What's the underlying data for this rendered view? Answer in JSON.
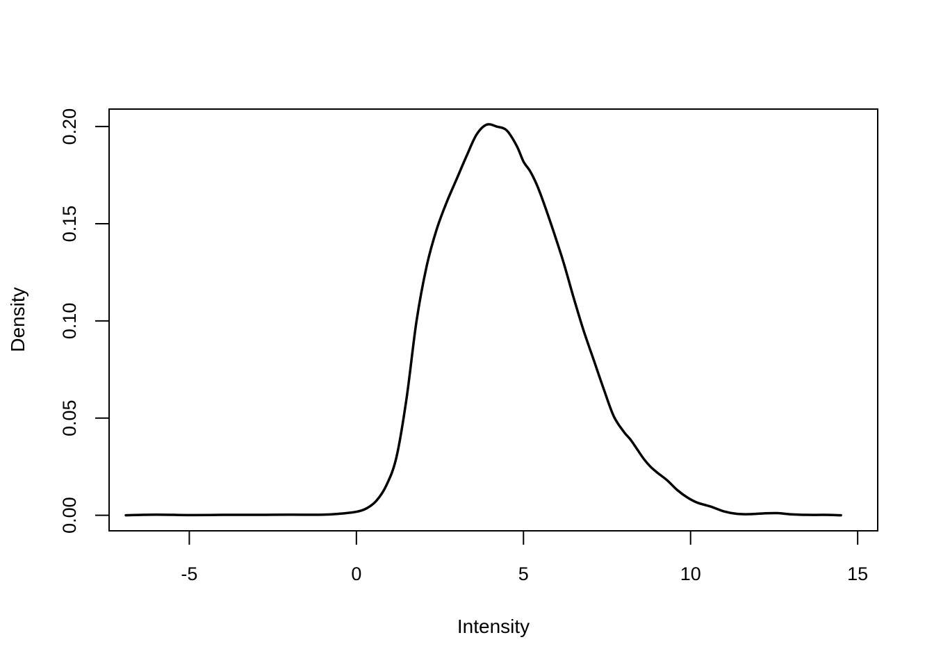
{
  "chart_data": {
    "type": "line",
    "title": "",
    "xlabel": "Intensity",
    "ylabel": "Density",
    "xlim": [
      -7.4,
      15.6
    ],
    "ylim": [
      -0.008,
      0.209
    ],
    "xticks": [
      -5,
      0,
      5,
      10,
      15
    ],
    "xtick_labels": [
      "-5",
      "0",
      "5",
      "10",
      "15"
    ],
    "yticks": [
      0.0,
      0.05,
      0.1,
      0.15,
      0.2
    ],
    "ytick_labels": [
      "0.00",
      "0.05",
      "0.10",
      "0.15",
      "0.20"
    ],
    "grid": false,
    "legend": "none",
    "colors": {
      "line": "#000000"
    },
    "series": [
      {
        "x": [
          -6.9,
          -6.0,
          -5.0,
          -4.0,
          -3.0,
          -2.0,
          -1.0,
          -0.5,
          0.0,
          0.3,
          0.6,
          0.9,
          1.2,
          1.5,
          1.8,
          2.1,
          2.4,
          2.7,
          3.0,
          3.3,
          3.6,
          3.9,
          4.2,
          4.5,
          4.8,
          5.0,
          5.2,
          5.4,
          5.6,
          5.9,
          6.2,
          6.5,
          6.8,
          7.1,
          7.4,
          7.7,
          8.0,
          8.2,
          8.4,
          8.6,
          8.8,
          9.0,
          9.3,
          9.6,
          9.9,
          10.2,
          10.6,
          11.0,
          11.4,
          11.8,
          12.2,
          12.6,
          13.0,
          13.5,
          14.0,
          14.5
        ],
        "y": [
          0.0,
          0.0003,
          0.0001,
          0.0002,
          0.0002,
          0.0003,
          0.0003,
          0.0008,
          0.0018,
          0.0035,
          0.0075,
          0.0155,
          0.03,
          0.06,
          0.1,
          0.128,
          0.147,
          0.161,
          0.173,
          0.185,
          0.196,
          0.201,
          0.2,
          0.198,
          0.19,
          0.182,
          0.177,
          0.17,
          0.161,
          0.146,
          0.13,
          0.112,
          0.095,
          0.08,
          0.065,
          0.051,
          0.043,
          0.039,
          0.034,
          0.029,
          0.025,
          0.022,
          0.018,
          0.013,
          0.0092,
          0.0065,
          0.0045,
          0.002,
          0.0007,
          0.0006,
          0.001,
          0.0011,
          0.0005,
          0.0002,
          0.0002,
          0.0
        ]
      }
    ]
  }
}
